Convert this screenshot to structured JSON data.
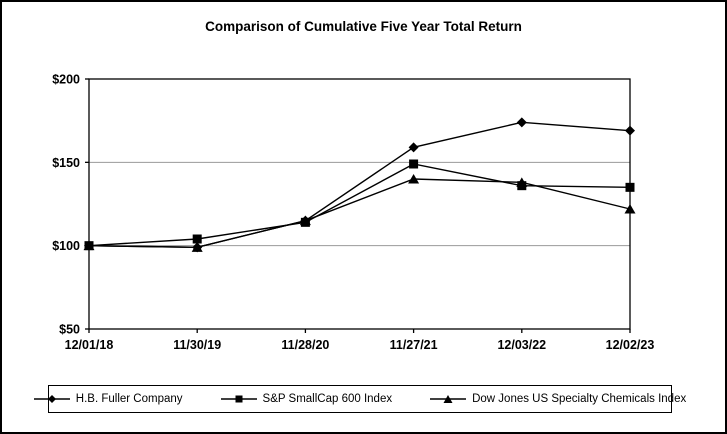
{
  "page": {
    "title": "Comparison of Cumulative Five Year Total Return"
  },
  "chart_data": {
    "type": "line",
    "title": "Comparison of Cumulative Five Year Total Return",
    "categories": [
      "12/01/18",
      "11/30/19",
      "11/28/20",
      "11/27/21",
      "12/03/22",
      "12/02/23"
    ],
    "series": [
      {
        "name": "H.B. Fuller Company",
        "marker": "diamond",
        "values": [
          100,
          99,
          115,
          159,
          174,
          169
        ]
      },
      {
        "name": "S&P SmallCap 600 Index",
        "marker": "square",
        "values": [
          100,
          104,
          114,
          149,
          136,
          135
        ]
      },
      {
        "name": "Dow Jones US Specialty Chemicals Index",
        "marker": "triangle",
        "values": [
          100,
          99,
          115,
          140,
          138,
          122
        ]
      }
    ],
    "xlabel": "",
    "ylabel": "",
    "ylim": [
      50,
      200
    ],
    "ytick_values": [
      50,
      100,
      150,
      200
    ],
    "ytick_labels": [
      "$50",
      "$100",
      "$150",
      "$200"
    ],
    "gridline_values": [
      100,
      150
    ],
    "grid": "horizontal",
    "legend_position": "bottom",
    "colors": {
      "series": "#000000",
      "grid": "#999999",
      "axis": "#000000",
      "text": "#000000",
      "background": "#ffffff"
    }
  }
}
